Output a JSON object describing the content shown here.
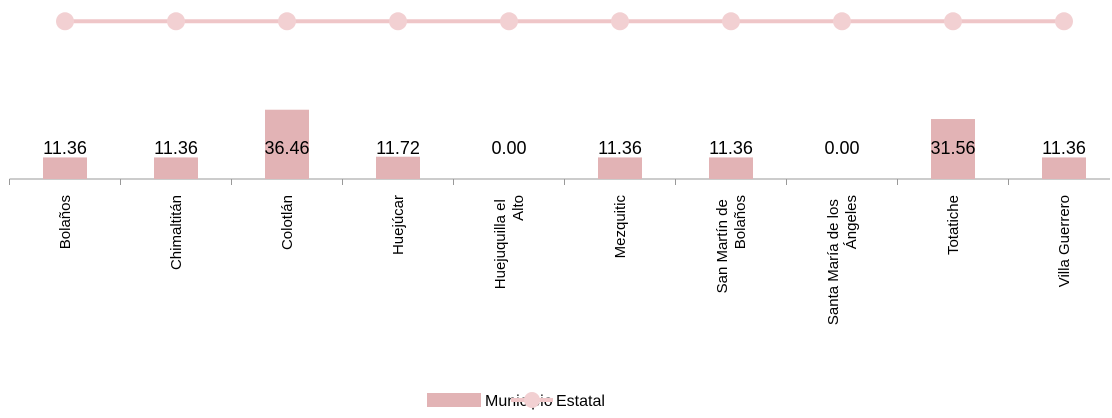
{
  "chart_data": {
    "type": "bar_line",
    "categories": [
      "Bolaños",
      "Chimaltitán",
      "Colotlán",
      "Huejúcar",
      "Huejuquilla el Alto",
      "Mezquitic",
      "San Martín de Bolaños",
      "Santa María de los Ángeles",
      "Totatiche",
      "Villa Guerrero"
    ],
    "series": [
      {
        "name": "Municipio",
        "type": "bar",
        "color": "#e2b3b5",
        "values": [
          11.36,
          11.36,
          36.46,
          11.72,
          0,
          11.36,
          11.36,
          0,
          31.56,
          11.36
        ],
        "value_labels": [
          "11.36",
          "11.36",
          "36.46",
          "11.72",
          "0.00",
          "11.36",
          "11.36",
          "0.00",
          "31.56",
          "11.36"
        ]
      },
      {
        "name": "Estatal",
        "type": "line",
        "color": "#efc6c8",
        "values": [
          83,
          83,
          83,
          83,
          83,
          83,
          83,
          83,
          83,
          83
        ]
      }
    ],
    "ylim": [
      0,
      90
    ]
  }
}
